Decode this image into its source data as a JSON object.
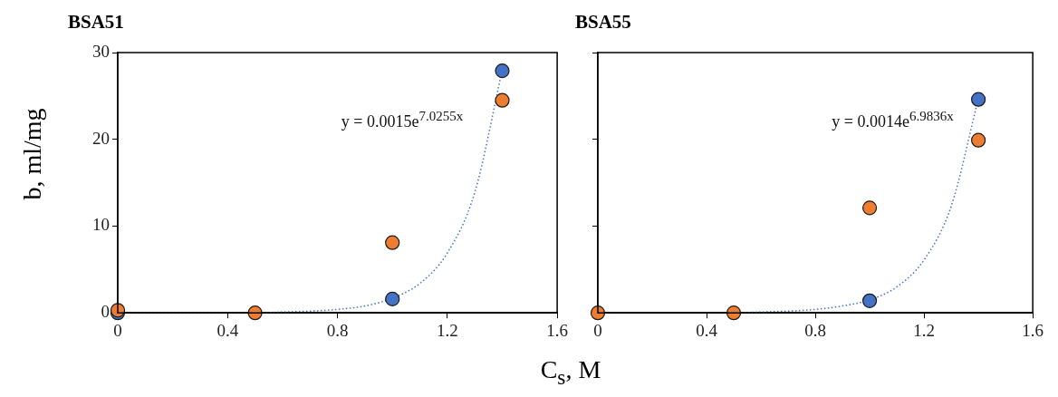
{
  "chart_data": [
    {
      "type": "scatter",
      "title": "BSA51",
      "xlabel": "C$_{s}$, M",
      "ylabel": "b, ml/mg",
      "xlim": [
        0,
        1.6
      ],
      "xticks": [
        0,
        0.4,
        0.8,
        1.2,
        1.6
      ],
      "ylim": [
        0,
        30
      ],
      "yticks": [
        0,
        10,
        20,
        30
      ],
      "grid": false,
      "legend": false,
      "marker": "circle",
      "annotations": [
        "y = 0.0015e$^{7.0255x}$"
      ],
      "series": [
        {
          "type": "line",
          "color": "#4472c4",
          "marker": "none",
          "line_style": "dotted",
          "x": [
            0,
            0.5,
            0.6,
            0.7,
            0.8,
            0.9,
            1.0,
            1.1,
            1.2,
            1.3,
            1.4
          ],
          "values": [
            0.0,
            0.0,
            0.1,
            0.2,
            0.4,
            0.8,
            1.7,
            3.4,
            6.9,
            13.9,
            28.0
          ]
        },
        {
          "color": "#4472c4",
          "x": [
            0,
            1.0,
            1.4
          ],
          "values": [
            0,
            1.6,
            27.9
          ]
        },
        {
          "color": "#ed7d31",
          "x": [
            0,
            0.5,
            1.0,
            1.4
          ],
          "values": [
            0.3,
            0,
            8.1,
            24.5
          ]
        }
      ]
    },
    {
      "type": "scatter",
      "title": "BSA55",
      "xlim": [
        0,
        1.6
      ],
      "xticks": [
        0,
        0.4,
        0.8,
        1.2,
        1.6
      ],
      "ylim": [
        0,
        30
      ],
      "yticks": [
        0,
        10,
        20,
        30
      ],
      "tick_labels": "x",
      "grid": false,
      "legend": false,
      "marker": "circle",
      "annotations": [
        "y = 0.0014e$^{6.9836x}$"
      ],
      "series": [
        {
          "type": "line",
          "color": "#4472c4",
          "marker": "none",
          "line_style": "dotted",
          "x": [
            0.5,
            0.6,
            0.7,
            0.8,
            0.9,
            1.0,
            1.1,
            1.2,
            1.3,
            1.4
          ],
          "values": [
            0.0,
            0.1,
            0.2,
            0.4,
            0.8,
            1.5,
            3.0,
            6.1,
            12.3,
            24.7
          ]
        },
        {
          "color": "#4472c4",
          "x": [
            1.0,
            1.4
          ],
          "values": [
            1.4,
            24.6
          ]
        },
        {
          "color": "#ed7d31",
          "x": [
            0,
            0.5,
            1.0,
            1.4
          ],
          "values": [
            0,
            0,
            12.1,
            19.9
          ]
        }
      ]
    }
  ]
}
